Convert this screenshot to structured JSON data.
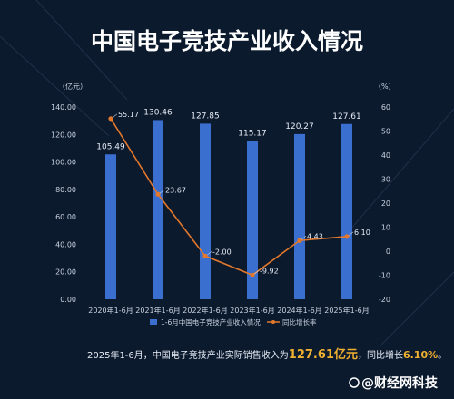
{
  "chart_data": {
    "type": "bar",
    "title": "中国电子竞技产业收入情况",
    "categories": [
      "2020年1-6月",
      "2021年1-6月",
      "2022年1-6月",
      "2023年1-6月",
      "2024年1-6月",
      "2025年1-6月"
    ],
    "left_unit": "（亿元）",
    "right_unit": "（%）",
    "series": [
      {
        "name": "1-6月中国电子竞技产业收入情况",
        "type": "bar",
        "axis": "left",
        "values": [
          105.49,
          130.46,
          127.85,
          115.17,
          120.27,
          127.61
        ],
        "labels": [
          "105.49",
          "130.46",
          "127.85",
          "115.17",
          "120.27",
          "127.61"
        ],
        "color": "#3a6fd0"
      },
      {
        "name": "同比增长率",
        "type": "line",
        "axis": "right",
        "values": [
          55.17,
          23.67,
          -2.0,
          -9.92,
          4.43,
          6.1
        ],
        "labels": [
          "55.17",
          "23.67",
          "-2.00",
          "-9.92",
          "4.43",
          "6.10"
        ],
        "color": "#e2782b"
      }
    ],
    "left_axis": {
      "range": [
        0,
        140
      ],
      "ticks": [
        "0.00",
        "20.00",
        "40.00",
        "60.00",
        "80.00",
        "100.00",
        "120.00",
        "140.00"
      ]
    },
    "right_axis": {
      "range": [
        -20,
        60
      ],
      "ticks": [
        "-20",
        "-10",
        "0",
        "10",
        "20",
        "30",
        "40",
        "50",
        "60"
      ]
    },
    "legend_position": "bottom"
  },
  "footnote": {
    "prefix": "2025年1-6月，中国电子竞技产业实际销售收入为",
    "amount": "127.61亿元",
    "middle": "，同比增长",
    "rate": "6.10%",
    "suffix": "。"
  },
  "watermark": "@财经网科技"
}
